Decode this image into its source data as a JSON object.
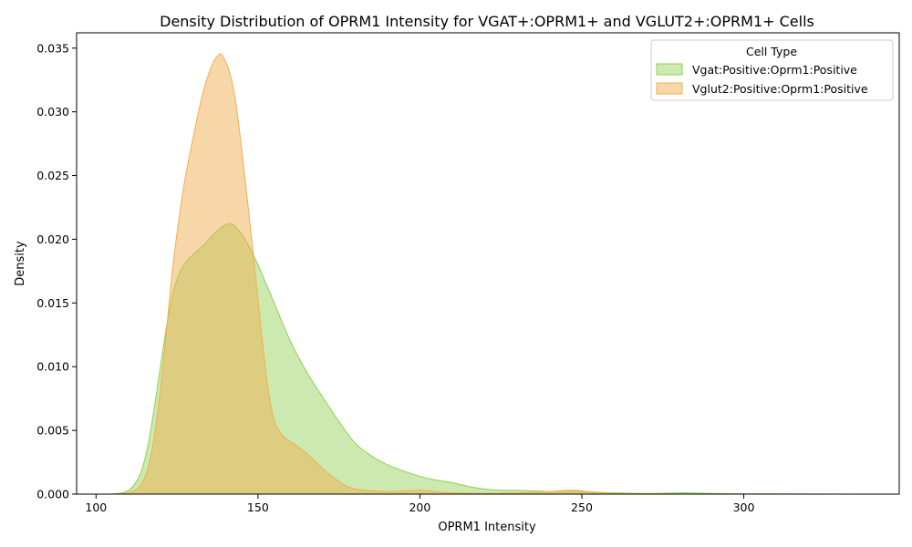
{
  "chart_data": {
    "type": "area",
    "title": "Density Distribution of OPRM1 Intensity for VGAT+:OPRM1+ and VGLUT2+:OPRM1+ Cells",
    "xlabel": "OPRM1 Intensity",
    "ylabel": "Density",
    "xlim": [
      94,
      348
    ],
    "ylim": [
      0,
      0.0362
    ],
    "x_ticks": [
      100,
      150,
      200,
      250,
      300
    ],
    "x_tick_labels": [
      "100",
      "150",
      "200",
      "250",
      "300"
    ],
    "y_ticks": [
      0,
      0.005,
      0.01,
      0.015,
      0.02,
      0.025,
      0.03,
      0.035
    ],
    "y_tick_labels": [
      "0.000",
      "0.005",
      "0.010",
      "0.015",
      "0.020",
      "0.025",
      "0.030",
      "0.035"
    ],
    "grid": false,
    "legend": {
      "title": "Cell Type",
      "position": "top-right"
    },
    "series": [
      {
        "name": "Vgat:Positive:Oprm1:Positive",
        "color": "#8fd14f",
        "fill_opacity": 0.45,
        "x": [
          105,
          108,
          110,
          112,
          114,
          116,
          118,
          120,
          122,
          124,
          126,
          128,
          130,
          133,
          136,
          139,
          141,
          143,
          146,
          150,
          155,
          160,
          165,
          170,
          175,
          180,
          185,
          190,
          195,
          200,
          205,
          210,
          215,
          220,
          225,
          230,
          240,
          250,
          260,
          270,
          280,
          283,
          290,
          300,
          320,
          335
        ],
        "values": [
          0,
          0.0001,
          0.0003,
          0.0008,
          0.0018,
          0.0038,
          0.0068,
          0.0102,
          0.0135,
          0.016,
          0.0175,
          0.0183,
          0.0188,
          0.0195,
          0.0203,
          0.021,
          0.0212,
          0.021,
          0.02,
          0.018,
          0.015,
          0.012,
          0.0096,
          0.0076,
          0.0057,
          0.004,
          0.003,
          0.0023,
          0.0018,
          0.0014,
          0.0011,
          0.0009,
          0.0006,
          0.0004,
          0.0003,
          0.0003,
          0.0002,
          0.0002,
          0.0001,
          5e-05,
          0.0001,
          0.0001,
          5e-05,
          2e-05,
          1e-05,
          0
        ]
      },
      {
        "name": "Vglut2:Positive:Oprm1:Positive",
        "color": "#f0b050",
        "fill_opacity": 0.5,
        "x": [
          108,
          110,
          112,
          114,
          116,
          118,
          120,
          122,
          124,
          127,
          130,
          133,
          136,
          138,
          139,
          141,
          143,
          145,
          147,
          149,
          151,
          153,
          155,
          157,
          159,
          162,
          166,
          170,
          175,
          180,
          190,
          200,
          205,
          210,
          220,
          230,
          240,
          245,
          248,
          252,
          260,
          270,
          280,
          290
        ],
        "values": [
          0,
          0.0001,
          0.0003,
          0.0008,
          0.002,
          0.0045,
          0.0085,
          0.0135,
          0.0185,
          0.024,
          0.028,
          0.0315,
          0.0338,
          0.0345,
          0.0344,
          0.0333,
          0.031,
          0.027,
          0.0225,
          0.0178,
          0.0128,
          0.0085,
          0.0058,
          0.0048,
          0.0043,
          0.0038,
          0.003,
          0.002,
          0.001,
          0.0004,
          0.0002,
          0.0003,
          0.0002,
          0.0001,
          5e-05,
          0.0001,
          0.0002,
          0.0003,
          0.0003,
          0.0002,
          5e-05,
          2e-05,
          1e-05,
          0
        ]
      }
    ]
  }
}
